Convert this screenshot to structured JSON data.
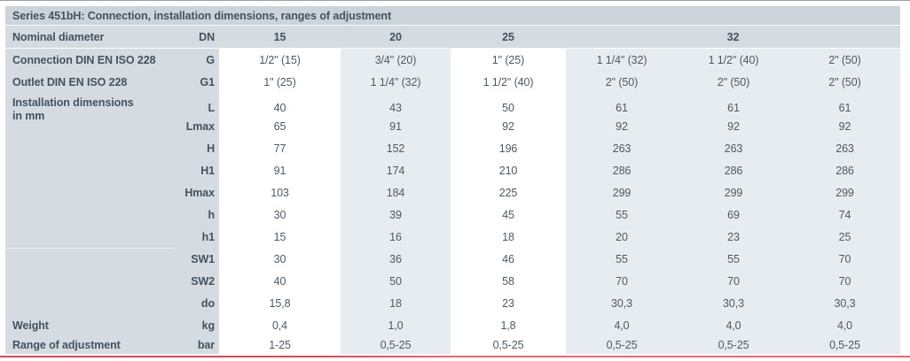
{
  "table": {
    "title": "Series 451bH: Connection, installation dimensions, ranges of adjustment",
    "header": {
      "label": "Nominal diameter",
      "unit": "DN",
      "col_groups": [
        {
          "label": "15",
          "span": 1
        },
        {
          "label": "20",
          "span": 1
        },
        {
          "label": "25",
          "span": 1
        },
        {
          "label": "32",
          "span": 3
        }
      ]
    },
    "rows": [
      {
        "label": "Connection DIN EN ISO 228",
        "unit": "G",
        "values": [
          "1/2\" (15)",
          "3/4\" (20)",
          "1\" (25)",
          "1 1/4\" (32)",
          "1 1/2\" (40)",
          "2\" (50)"
        ]
      },
      {
        "label": "Outlet DIN EN ISO 228",
        "unit": "G1",
        "values": [
          "1\" (25)",
          "1 1/4\" (32)",
          "1 1/2\" (40)",
          "2\" (50)",
          "2\" (50)",
          "2\" (50)"
        ]
      },
      {
        "label": "Installation dimensions\nin mm",
        "unit": "L",
        "values": [
          "40",
          "43",
          "50",
          "61",
          "61",
          "61"
        ]
      },
      {
        "label": "",
        "unit": "Lmax",
        "values": [
          "65",
          "91",
          "92",
          "92",
          "92",
          "92"
        ]
      },
      {
        "label": "",
        "unit": "H",
        "values": [
          "77",
          "152",
          "196",
          "263",
          "263",
          "263"
        ]
      },
      {
        "label": "",
        "unit": "H1",
        "values": [
          "91",
          "174",
          "210",
          "286",
          "286",
          "286"
        ]
      },
      {
        "label": "",
        "unit": "Hmax",
        "values": [
          "103",
          "184",
          "225",
          "299",
          "299",
          "299"
        ]
      },
      {
        "label": "",
        "unit": "h",
        "values": [
          "30",
          "39",
          "45",
          "55",
          "69",
          "74"
        ]
      },
      {
        "label": "",
        "unit": "h1",
        "values": [
          "15",
          "16",
          "18",
          "20",
          "23",
          "25"
        ]
      },
      {
        "label": "",
        "unit": "SW1",
        "divider": true,
        "values": [
          "30",
          "36",
          "46",
          "55",
          "55",
          "70"
        ]
      },
      {
        "label": "",
        "unit": "SW2",
        "values": [
          "40",
          "50",
          "58",
          "70",
          "70",
          "70"
        ]
      },
      {
        "label": "",
        "unit": "do",
        "values": [
          "15,8",
          "18",
          "23",
          "30,3",
          "30,3",
          "30,3"
        ]
      },
      {
        "label": "Weight",
        "unit": "kg",
        "values": [
          "0,4",
          "1,0",
          "1,8",
          "4,0",
          "4,0",
          "4,0"
        ]
      },
      {
        "label": "Range of adjustment",
        "unit": "bar",
        "values": [
          "1-25",
          "0,5-25",
          "0,5-25",
          "0,5-25",
          "0,5-25",
          "0,5-25"
        ]
      }
    ]
  },
  "colors": {
    "title_bg": "#cbd4da",
    "head_bg": "#d4dce2",
    "light_bg": "#e6ecf0",
    "white_col_bg": "#ffffff",
    "text": "#44525e",
    "value_text": "#4c5a67",
    "accent_dark": "#d94a57",
    "accent_light": "#ee6570",
    "rule_color": "#9aa1a7"
  }
}
